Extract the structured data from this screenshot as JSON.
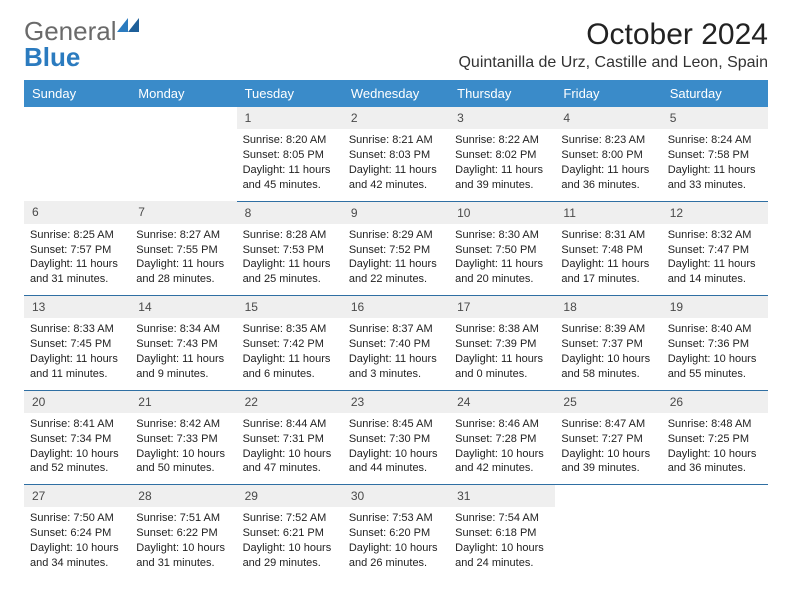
{
  "brand": {
    "general": "General",
    "blue": "Blue"
  },
  "title": "October 2024",
  "location": "Quintanilla de Urz, Castille and Leon, Spain",
  "colors": {
    "header_bg": "#3a8bc9",
    "header_text": "#ffffff",
    "daynum_bg": "#efefef",
    "daynum_text": "#4a4a4a",
    "cell_divider": "#2f6fa3",
    "page_bg": "#ffffff",
    "logo_accent": "#2b7bbf",
    "logo_gray": "#6a6a6a",
    "body_text": "#222222"
  },
  "typography": {
    "title_fontsize": 30,
    "location_fontsize": 16,
    "weekday_fontsize": 13,
    "daynum_fontsize": 12,
    "body_fontsize": 11
  },
  "weekdays": [
    "Sunday",
    "Monday",
    "Tuesday",
    "Wednesday",
    "Thursday",
    "Friday",
    "Saturday"
  ],
  "weeks": [
    {
      "days": [
        null,
        null,
        {
          "n": "1",
          "sunrise": "Sunrise: 8:20 AM",
          "sunset": "Sunset: 8:05 PM",
          "daylight": "Daylight: 11 hours and 45 minutes."
        },
        {
          "n": "2",
          "sunrise": "Sunrise: 8:21 AM",
          "sunset": "Sunset: 8:03 PM",
          "daylight": "Daylight: 11 hours and 42 minutes."
        },
        {
          "n": "3",
          "sunrise": "Sunrise: 8:22 AM",
          "sunset": "Sunset: 8:02 PM",
          "daylight": "Daylight: 11 hours and 39 minutes."
        },
        {
          "n": "4",
          "sunrise": "Sunrise: 8:23 AM",
          "sunset": "Sunset: 8:00 PM",
          "daylight": "Daylight: 11 hours and 36 minutes."
        },
        {
          "n": "5",
          "sunrise": "Sunrise: 8:24 AM",
          "sunset": "Sunset: 7:58 PM",
          "daylight": "Daylight: 11 hours and 33 minutes."
        }
      ]
    },
    {
      "days": [
        {
          "n": "6",
          "sunrise": "Sunrise: 8:25 AM",
          "sunset": "Sunset: 7:57 PM",
          "daylight": "Daylight: 11 hours and 31 minutes."
        },
        {
          "n": "7",
          "sunrise": "Sunrise: 8:27 AM",
          "sunset": "Sunset: 7:55 PM",
          "daylight": "Daylight: 11 hours and 28 minutes."
        },
        {
          "n": "8",
          "sunrise": "Sunrise: 8:28 AM",
          "sunset": "Sunset: 7:53 PM",
          "daylight": "Daylight: 11 hours and 25 minutes."
        },
        {
          "n": "9",
          "sunrise": "Sunrise: 8:29 AM",
          "sunset": "Sunset: 7:52 PM",
          "daylight": "Daylight: 11 hours and 22 minutes."
        },
        {
          "n": "10",
          "sunrise": "Sunrise: 8:30 AM",
          "sunset": "Sunset: 7:50 PM",
          "daylight": "Daylight: 11 hours and 20 minutes."
        },
        {
          "n": "11",
          "sunrise": "Sunrise: 8:31 AM",
          "sunset": "Sunset: 7:48 PM",
          "daylight": "Daylight: 11 hours and 17 minutes."
        },
        {
          "n": "12",
          "sunrise": "Sunrise: 8:32 AM",
          "sunset": "Sunset: 7:47 PM",
          "daylight": "Daylight: 11 hours and 14 minutes."
        }
      ]
    },
    {
      "days": [
        {
          "n": "13",
          "sunrise": "Sunrise: 8:33 AM",
          "sunset": "Sunset: 7:45 PM",
          "daylight": "Daylight: 11 hours and 11 minutes."
        },
        {
          "n": "14",
          "sunrise": "Sunrise: 8:34 AM",
          "sunset": "Sunset: 7:43 PM",
          "daylight": "Daylight: 11 hours and 9 minutes."
        },
        {
          "n": "15",
          "sunrise": "Sunrise: 8:35 AM",
          "sunset": "Sunset: 7:42 PM",
          "daylight": "Daylight: 11 hours and 6 minutes."
        },
        {
          "n": "16",
          "sunrise": "Sunrise: 8:37 AM",
          "sunset": "Sunset: 7:40 PM",
          "daylight": "Daylight: 11 hours and 3 minutes."
        },
        {
          "n": "17",
          "sunrise": "Sunrise: 8:38 AM",
          "sunset": "Sunset: 7:39 PM",
          "daylight": "Daylight: 11 hours and 0 minutes."
        },
        {
          "n": "18",
          "sunrise": "Sunrise: 8:39 AM",
          "sunset": "Sunset: 7:37 PM",
          "daylight": "Daylight: 10 hours and 58 minutes."
        },
        {
          "n": "19",
          "sunrise": "Sunrise: 8:40 AM",
          "sunset": "Sunset: 7:36 PM",
          "daylight": "Daylight: 10 hours and 55 minutes."
        }
      ]
    },
    {
      "days": [
        {
          "n": "20",
          "sunrise": "Sunrise: 8:41 AM",
          "sunset": "Sunset: 7:34 PM",
          "daylight": "Daylight: 10 hours and 52 minutes."
        },
        {
          "n": "21",
          "sunrise": "Sunrise: 8:42 AM",
          "sunset": "Sunset: 7:33 PM",
          "daylight": "Daylight: 10 hours and 50 minutes."
        },
        {
          "n": "22",
          "sunrise": "Sunrise: 8:44 AM",
          "sunset": "Sunset: 7:31 PM",
          "daylight": "Daylight: 10 hours and 47 minutes."
        },
        {
          "n": "23",
          "sunrise": "Sunrise: 8:45 AM",
          "sunset": "Sunset: 7:30 PM",
          "daylight": "Daylight: 10 hours and 44 minutes."
        },
        {
          "n": "24",
          "sunrise": "Sunrise: 8:46 AM",
          "sunset": "Sunset: 7:28 PM",
          "daylight": "Daylight: 10 hours and 42 minutes."
        },
        {
          "n": "25",
          "sunrise": "Sunrise: 8:47 AM",
          "sunset": "Sunset: 7:27 PM",
          "daylight": "Daylight: 10 hours and 39 minutes."
        },
        {
          "n": "26",
          "sunrise": "Sunrise: 8:48 AM",
          "sunset": "Sunset: 7:25 PM",
          "daylight": "Daylight: 10 hours and 36 minutes."
        }
      ]
    },
    {
      "days": [
        {
          "n": "27",
          "sunrise": "Sunrise: 7:50 AM",
          "sunset": "Sunset: 6:24 PM",
          "daylight": "Daylight: 10 hours and 34 minutes."
        },
        {
          "n": "28",
          "sunrise": "Sunrise: 7:51 AM",
          "sunset": "Sunset: 6:22 PM",
          "daylight": "Daylight: 10 hours and 31 minutes."
        },
        {
          "n": "29",
          "sunrise": "Sunrise: 7:52 AM",
          "sunset": "Sunset: 6:21 PM",
          "daylight": "Daylight: 10 hours and 29 minutes."
        },
        {
          "n": "30",
          "sunrise": "Sunrise: 7:53 AM",
          "sunset": "Sunset: 6:20 PM",
          "daylight": "Daylight: 10 hours and 26 minutes."
        },
        {
          "n": "31",
          "sunrise": "Sunrise: 7:54 AM",
          "sunset": "Sunset: 6:18 PM",
          "daylight": "Daylight: 10 hours and 24 minutes."
        },
        null,
        null
      ]
    }
  ]
}
